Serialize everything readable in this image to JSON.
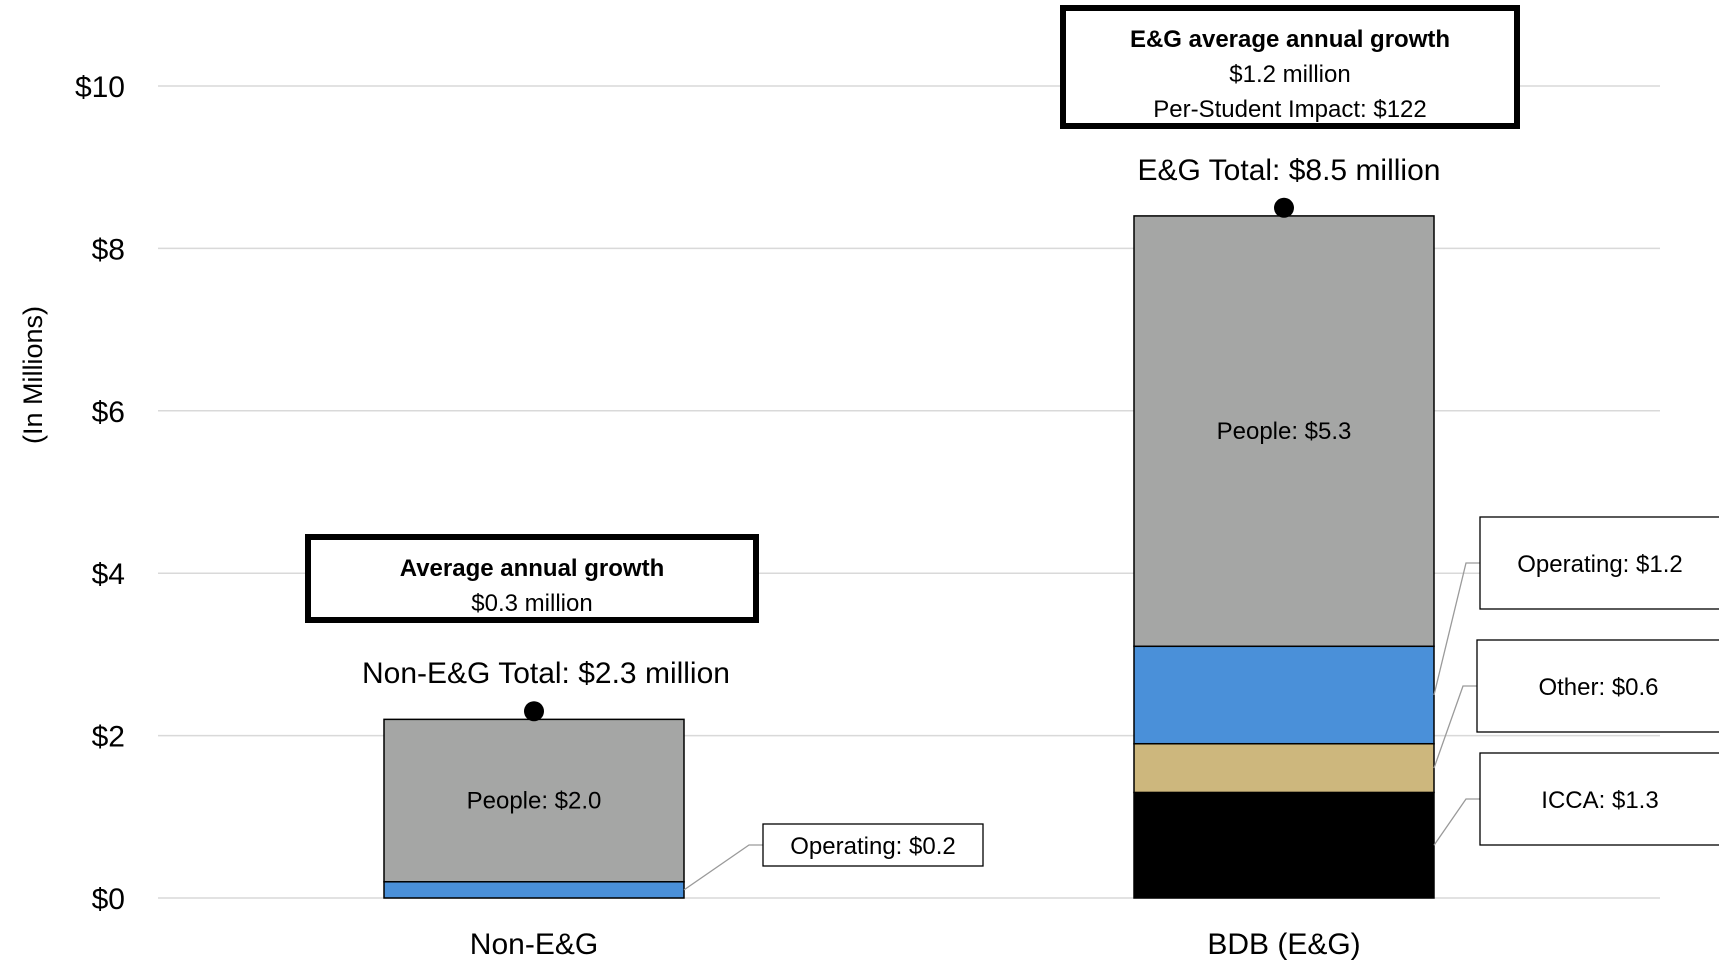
{
  "chart_data": {
    "type": "bar",
    "stacked": true,
    "ylabel": "(In Millions)",
    "ylim": [
      0,
      10.5
    ],
    "yticks": [
      {
        "value": 0,
        "label": "$0"
      },
      {
        "value": 2,
        "label": "$2"
      },
      {
        "value": 4,
        "label": "$4"
      },
      {
        "value": 6,
        "label": "$6"
      },
      {
        "value": 8,
        "label": "$8"
      },
      {
        "value": 10,
        "label": "$10"
      }
    ],
    "grid": true,
    "categories": [
      "Non-E&G",
      "BDB (E&G)"
    ],
    "colors": {
      "People": "#a5a6a5",
      "Operating": "#4a90d9",
      "Other": "#cdb77d",
      "ICCA": "#000000"
    },
    "bars": [
      {
        "category": "Non-E&G",
        "total": 2.3,
        "total_label": "Non-E&G Total: $2.3 million",
        "segments": [
          {
            "name": "Operating",
            "value": 0.2,
            "label": "Operating: $0.2",
            "label_style": "callout"
          },
          {
            "name": "People",
            "value": 2.0,
            "label": "People: $2.0",
            "label_style": "inside"
          }
        ],
        "growth_box": {
          "title": "Average annual growth",
          "lines": [
            "$0.3 million"
          ]
        }
      },
      {
        "category": "BDB (E&G)",
        "total": 8.5,
        "total_label": "E&G Total: $8.5 million",
        "segments": [
          {
            "name": "ICCA",
            "value": 1.3,
            "label": "ICCA: $1.3",
            "label_style": "callout"
          },
          {
            "name": "Other",
            "value": 0.6,
            "label": "Other: $0.6",
            "label_style": "callout"
          },
          {
            "name": "Operating",
            "value": 1.2,
            "label": "Operating: $1.2",
            "label_style": "callout"
          },
          {
            "name": "People",
            "value": 5.3,
            "label": "People: $5.3",
            "label_style": "inside"
          }
        ],
        "growth_box": {
          "title": "E&G average annual growth",
          "lines": [
            "$1.2 million",
            "Per-Student Impact: $122"
          ]
        }
      }
    ]
  }
}
